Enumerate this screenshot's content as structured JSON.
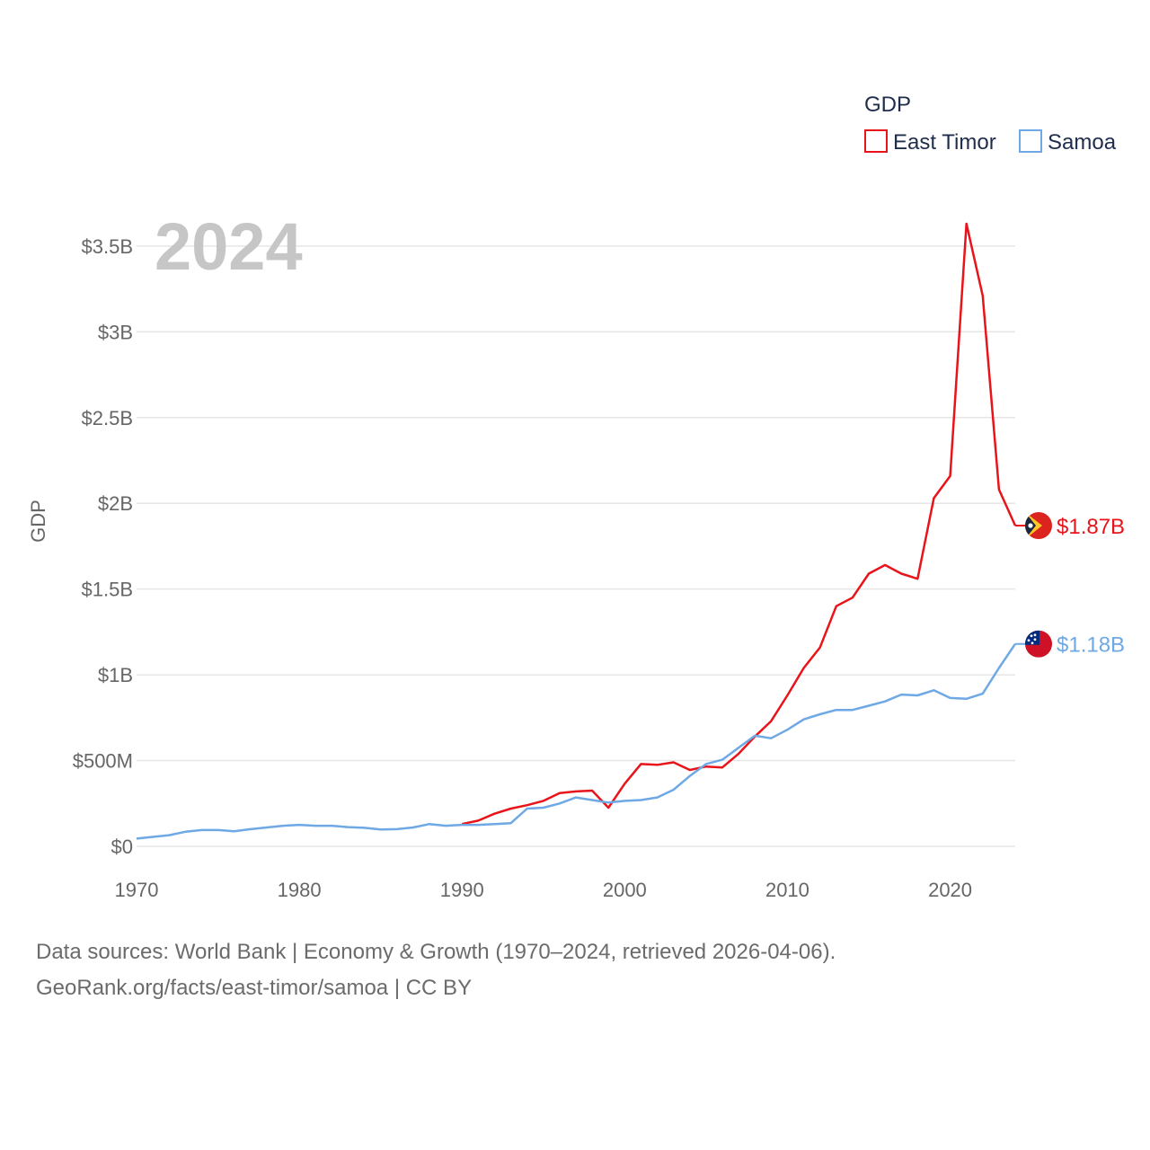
{
  "chart_data": {
    "type": "line",
    "title": "GDP",
    "big_year": "2024",
    "ylabel": "GDP",
    "xlabel": "",
    "xlim": [
      1970,
      2024
    ],
    "ylim": [
      0,
      3700
    ],
    "x_ticks": [
      {
        "value": 1970,
        "label": "1970"
      },
      {
        "value": 1980,
        "label": "1980"
      },
      {
        "value": 1990,
        "label": "1990"
      },
      {
        "value": 2000,
        "label": "2000"
      },
      {
        "value": 2010,
        "label": "2010"
      },
      {
        "value": 2020,
        "label": "2020"
      }
    ],
    "y_ticks": [
      {
        "value": 0,
        "label": "$0"
      },
      {
        "value": 500,
        "label": "$500M"
      },
      {
        "value": 1000,
        "label": "$1B"
      },
      {
        "value": 1500,
        "label": "$1.5B"
      },
      {
        "value": 2000,
        "label": "$2B"
      },
      {
        "value": 2500,
        "label": "$2.5B"
      },
      {
        "value": 3000,
        "label": "$3B"
      },
      {
        "value": 3500,
        "label": "$3.5B"
      }
    ],
    "legend_position": "top-right",
    "series": [
      {
        "name": "East Timor",
        "color": "#e8141a",
        "end_label": "$1.87B",
        "flag": "east-timor-flag",
        "x": [
          1990,
          1991,
          1992,
          1993,
          1994,
          1995,
          1996,
          1997,
          1998,
          1999,
          2000,
          2001,
          2002,
          2003,
          2004,
          2005,
          2006,
          2007,
          2008,
          2009,
          2010,
          2011,
          2012,
          2013,
          2014,
          2015,
          2016,
          2017,
          2018,
          2019,
          2020,
          2021,
          2022,
          2023,
          2024
        ],
        "values": [
          130,
          150,
          190,
          220,
          240,
          265,
          310,
          320,
          325,
          225,
          365,
          480,
          475,
          490,
          445,
          465,
          460,
          540,
          640,
          730,
          880,
          1040,
          1160,
          1400,
          1450,
          1590,
          1640,
          1590,
          1560,
          2030,
          2160,
          3630,
          3210,
          2080,
          1870
        ]
      },
      {
        "name": "Samoa",
        "color": "#6ea8e5",
        "end_label": "$1.18B",
        "flag": "samoa-flag",
        "x": [
          1970,
          1971,
          1972,
          1973,
          1974,
          1975,
          1976,
          1977,
          1978,
          1979,
          1980,
          1981,
          1982,
          1983,
          1984,
          1985,
          1986,
          1987,
          1988,
          1989,
          1990,
          1991,
          1992,
          1993,
          1994,
          1995,
          1996,
          1997,
          1998,
          1999,
          2000,
          2001,
          2002,
          2003,
          2004,
          2005,
          2006,
          2007,
          2008,
          2009,
          2010,
          2011,
          2012,
          2013,
          2014,
          2015,
          2016,
          2017,
          2018,
          2019,
          2020,
          2021,
          2022,
          2023,
          2024
        ],
        "values": [
          45,
          55,
          65,
          85,
          95,
          95,
          88,
          100,
          110,
          120,
          125,
          120,
          120,
          112,
          108,
          98,
          100,
          110,
          130,
          120,
          125,
          125,
          130,
          135,
          220,
          225,
          250,
          285,
          270,
          255,
          265,
          270,
          285,
          330,
          410,
          480,
          505,
          575,
          645,
          630,
          680,
          740,
          770,
          795,
          795,
          820,
          845,
          885,
          880,
          910,
          865,
          860,
          890,
          1040,
          1180
        ]
      }
    ]
  },
  "footer": {
    "line1": "Data sources: World Bank | Economy & Growth (1970–2024, retrieved 2026-04-06).",
    "line2": "GeoRank.org/facts/east-timor/samoa | CC BY"
  }
}
